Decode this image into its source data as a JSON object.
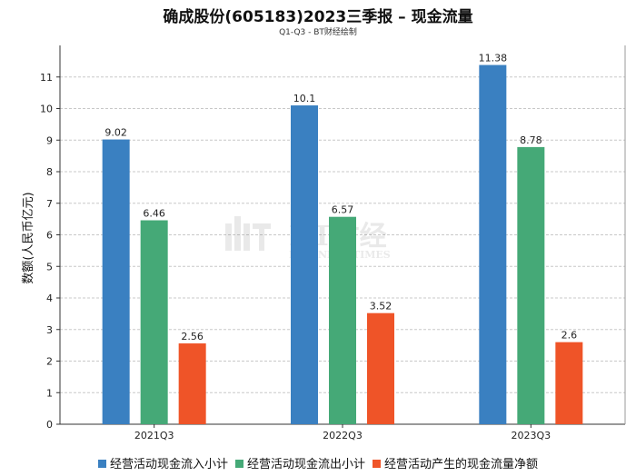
{
  "chart_data": {
    "type": "bar",
    "title": "确成股份(605183)2023三季报 – 现金流量",
    "subtitle": "Q1-Q3 - BT财经绘制",
    "xlabel": "",
    "ylabel": "数额(人民币亿元)",
    "ylim": [
      0,
      12
    ],
    "yticks": [
      "0",
      "1",
      "2",
      "3",
      "4",
      "5",
      "6",
      "7",
      "8",
      "9",
      "10",
      "11"
    ],
    "grid": true,
    "legend_position": "bottom",
    "categories": [
      "2021Q3",
      "2022Q3",
      "2023Q3"
    ],
    "series": [
      {
        "name": "经营活动现金流入小计",
        "color": "#3a80c1",
        "values": [
          9.02,
          10.1,
          11.38
        ],
        "labels": [
          "9.02",
          "10.1",
          "11.38"
        ]
      },
      {
        "name": "经营活动现金流出小计",
        "color": "#45a977",
        "values": [
          6.46,
          6.57,
          8.78
        ],
        "labels": [
          "6.46",
          "6.57",
          "8.78"
        ]
      },
      {
        "name": "经营活动产生的现金流量净额",
        "color": "#ef5428",
        "values": [
          2.56,
          3.52,
          2.6
        ],
        "labels": [
          "2.56",
          "3.52",
          "2.6"
        ]
      }
    ]
  },
  "watermark": {
    "text": "BT财经",
    "subtext": "BUSINESS TIMES"
  }
}
